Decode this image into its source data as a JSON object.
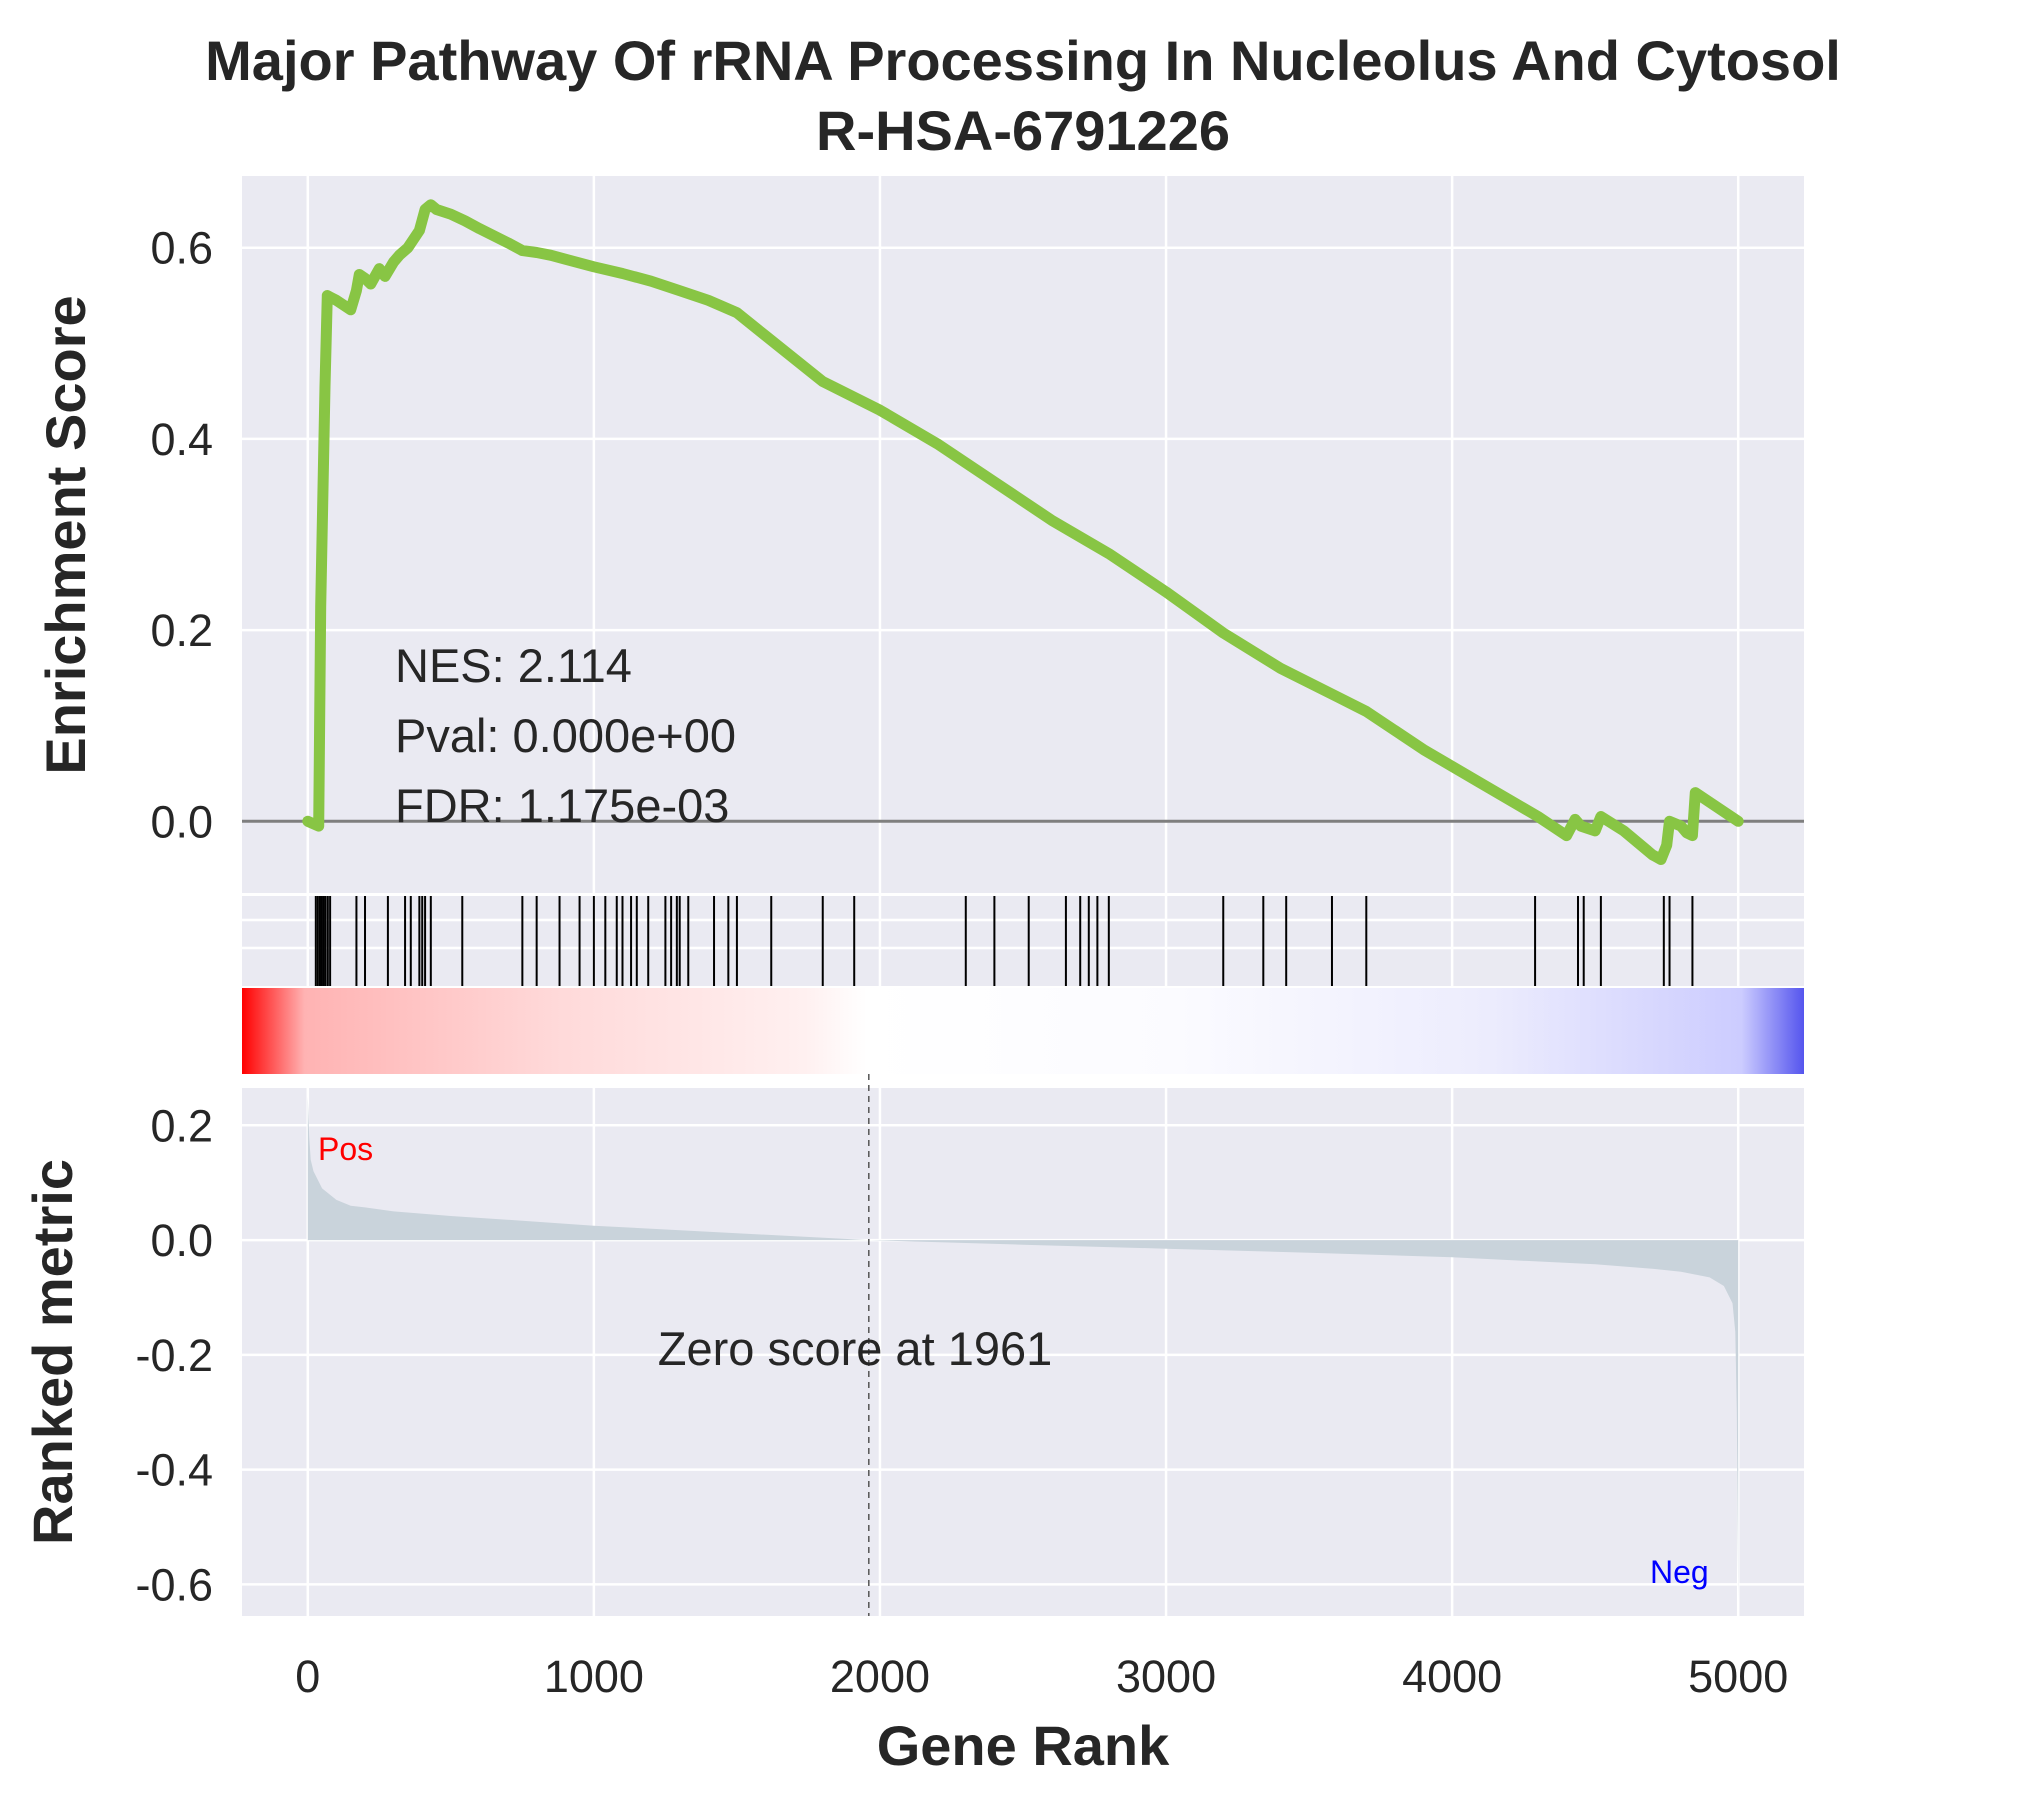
{
  "chart_data": {
    "type": "line",
    "title": "Major Pathway Of rRNA Processing In Nucleolus And Cytosol",
    "subtitle": "R-HSA-6791226",
    "xlabel": "Gene Rank",
    "xlim": [
      -230,
      5230
    ],
    "x_ticks": [
      0,
      1000,
      2000,
      3000,
      4000,
      5000
    ],
    "x_tick_labels": [
      "0",
      "1000",
      "2000",
      "3000",
      "4000",
      "5000"
    ],
    "colors": {
      "es_line": "#88c544",
      "panel_bg": "#eaeaf2",
      "grid": "#ffffff",
      "hit_line": "#000000",
      "metric_fill": "#c9d3db",
      "pos_label": "#ff0000",
      "neg_label": "#0000ff",
      "ramp_pos": "#ff0000",
      "ramp_mid": "#ffffff",
      "ramp_neg": "#0000ff"
    },
    "enrichment": {
      "ylabel": "Enrichment Score",
      "ylim": [
        -0.075,
        0.675
      ],
      "y_ticks": [
        0.0,
        0.2,
        0.4,
        0.6
      ],
      "y_tick_labels": [
        "0.0",
        "0.2",
        "0.4",
        "0.6"
      ],
      "stats": {
        "nes": "NES: 2.114",
        "pval": "Pval: 0.000e+00",
        "fdr": "FDR: 1.175e-03"
      },
      "series": [
        {
          "x": [
            0,
            38,
            45,
            60,
            68,
            80,
            100,
            150,
            170,
            180,
            200,
            220,
            250,
            270,
            300,
            320,
            350,
            390,
            410,
            430,
            450,
            500,
            550,
            600,
            700,
            750,
            800,
            850,
            900,
            1000,
            1100,
            1200,
            1300,
            1400,
            1500,
            1600,
            1800,
            2000,
            2200,
            2400,
            2600,
            2800,
            3000,
            3200,
            3400,
            3600,
            3700,
            3900,
            4100,
            4300,
            4350,
            4400,
            4430,
            4450,
            4500,
            4520,
            4600,
            4700,
            4730,
            4750,
            4760,
            4800,
            4820,
            4840,
            4850,
            5000
          ],
          "y": [
            0.0,
            -0.005,
            0.225,
            0.455,
            0.55,
            0.548,
            0.545,
            0.535,
            0.555,
            0.572,
            0.568,
            0.562,
            0.578,
            0.57,
            0.585,
            0.592,
            0.6,
            0.618,
            0.64,
            0.645,
            0.64,
            0.635,
            0.628,
            0.62,
            0.605,
            0.597,
            0.595,
            0.592,
            0.588,
            0.58,
            0.573,
            0.565,
            0.555,
            0.545,
            0.532,
            0.508,
            0.46,
            0.43,
            0.395,
            0.355,
            0.315,
            0.28,
            0.24,
            0.197,
            0.16,
            0.13,
            0.115,
            0.075,
            0.04,
            0.005,
            -0.005,
            -0.015,
            0.002,
            -0.005,
            -0.01,
            0.005,
            -0.01,
            -0.035,
            -0.04,
            -0.025,
            0.0,
            -0.005,
            -0.012,
            -0.015,
            0.03,
            0.0
          ]
        }
      ]
    },
    "hits": [
      28,
      35,
      42,
      48,
      55,
      62,
      70,
      78,
      170,
      200,
      280,
      340,
      360,
      390,
      400,
      410,
      430,
      540,
      750,
      800,
      880,
      950,
      1000,
      1040,
      1080,
      1100,
      1130,
      1150,
      1190,
      1250,
      1270,
      1290,
      1300,
      1330,
      1420,
      1470,
      1500,
      1620,
      1800,
      1910,
      2300,
      2400,
      2520,
      2650,
      2700,
      2730,
      2760,
      2800,
      3200,
      3340,
      3420,
      3580,
      3700,
      4290,
      4440,
      4460,
      4520,
      4740,
      4760,
      4840
    ],
    "ramp": {
      "zero_index": 1961
    },
    "metric": {
      "ylabel": "Ranked metric",
      "ylim": [
        -0.655,
        0.265
      ],
      "y_ticks": [
        0.2,
        0.0,
        -0.2,
        -0.4,
        -0.6
      ],
      "y_tick_labels": [
        "0.2",
        "0.0",
        "-0.2",
        "-0.4",
        "-0.6"
      ],
      "x": [
        0,
        5,
        10,
        20,
        50,
        100,
        150,
        200,
        300,
        500,
        800,
        1000,
        1500,
        1961,
        2500,
        3000,
        3500,
        4000,
        4500,
        4700,
        4800,
        4900,
        4950,
        4980,
        4990,
        4995,
        5000
      ],
      "y": [
        0.25,
        0.18,
        0.14,
        0.12,
        0.09,
        0.07,
        0.06,
        0.057,
        0.05,
        0.042,
        0.032,
        0.025,
        0.012,
        0.0,
        -0.008,
        -0.015,
        -0.022,
        -0.03,
        -0.042,
        -0.05,
        -0.055,
        -0.065,
        -0.08,
        -0.11,
        -0.16,
        -0.3,
        -0.63
      ],
      "zero_label": "Zero score at 1961",
      "pos_label": "Pos",
      "neg_label": "Neg"
    }
  }
}
